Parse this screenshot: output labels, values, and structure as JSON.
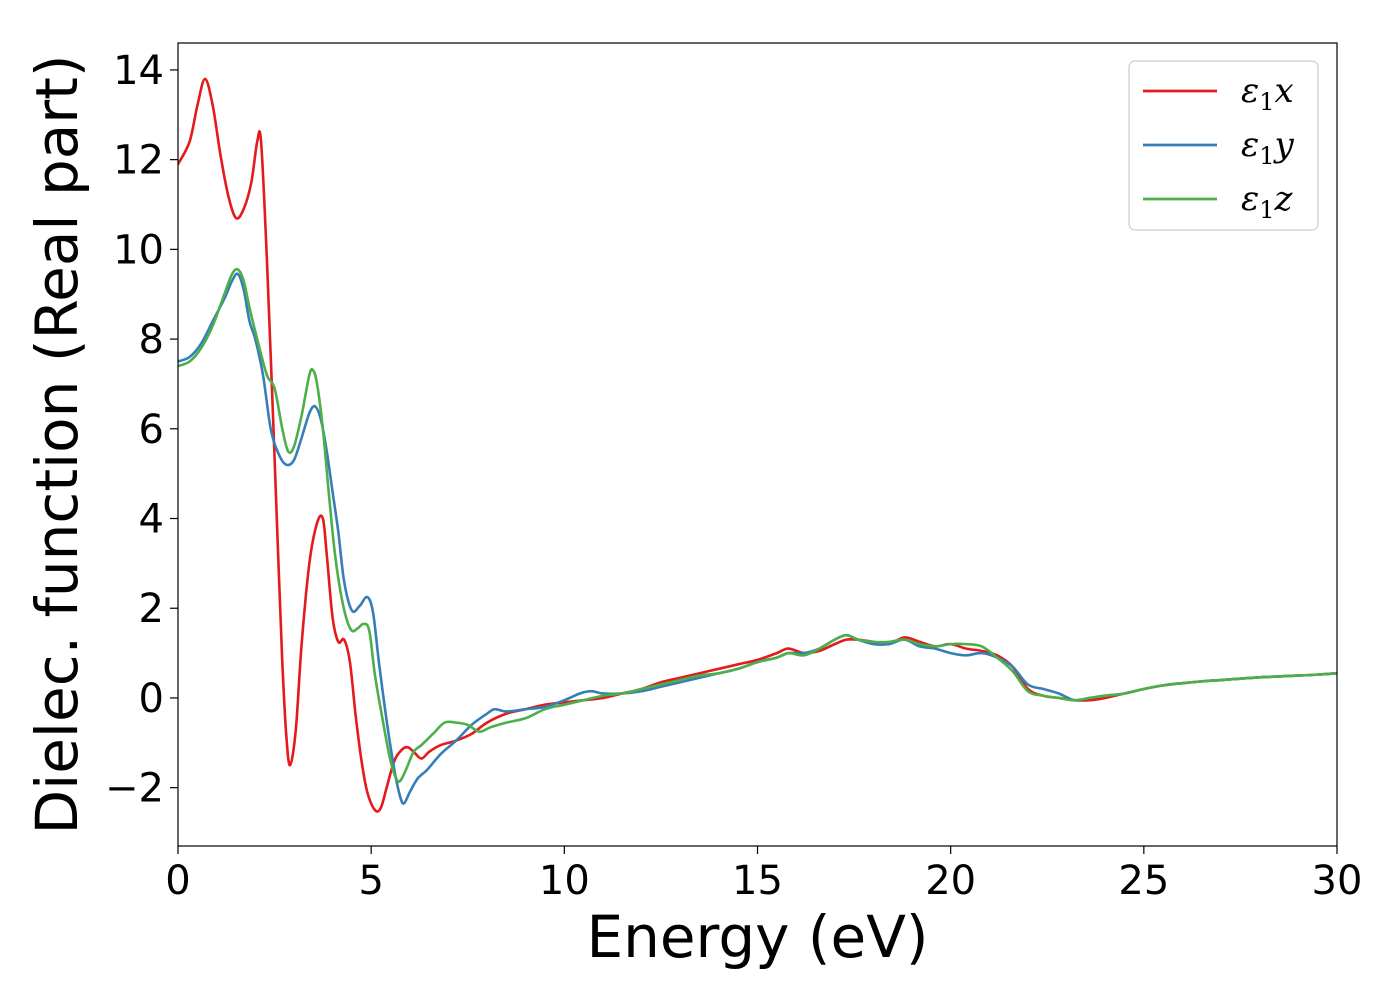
{
  "chart_data": {
    "type": "line",
    "xlabel": "Energy (eV)",
    "ylabel": "Dielec. function (Real part)",
    "xlim": [
      0,
      30
    ],
    "ylim": [
      -3.3,
      14.6
    ],
    "xticks": [
      0,
      5,
      10,
      15,
      20,
      25,
      30
    ],
    "yticks": [
      -2,
      0,
      2,
      4,
      6,
      8,
      10,
      12,
      14
    ],
    "xtick_labels": [
      "0",
      "5",
      "10",
      "15",
      "20",
      "25",
      "30"
    ],
    "ytick_labels": [
      "−2",
      "0",
      "2",
      "4",
      "6",
      "8",
      "10",
      "12",
      "14"
    ],
    "grid": false,
    "legend_position": "top-right",
    "series": [
      {
        "name": "x",
        "label_symbol": "ε",
        "label_sub": "1",
        "label_var": "x",
        "color": "#e41a1c",
        "x": [
          0,
          0.3,
          0.5,
          0.7,
          0.9,
          1.1,
          1.3,
          1.5,
          1.7,
          1.9,
          2.05,
          2.15,
          2.3,
          2.45,
          2.6,
          2.7,
          2.8,
          2.9,
          3.05,
          3.2,
          3.4,
          3.6,
          3.75,
          3.85,
          4.0,
          4.15,
          4.3,
          4.45,
          4.6,
          4.75,
          4.9,
          5.1,
          5.25,
          5.4,
          5.6,
          5.8,
          5.95,
          6.1,
          6.3,
          6.5,
          6.8,
          7.2,
          7.6,
          8.0,
          8.5,
          9.0,
          9.5,
          10.0,
          10.5,
          11.0,
          11.5,
          12.0,
          12.5,
          13.0,
          13.5,
          14.0,
          14.5,
          15.0,
          15.5,
          15.8,
          16.2,
          16.6,
          17.0,
          17.3,
          17.6,
          18.0,
          18.4,
          18.8,
          19.2,
          19.6,
          20.0,
          20.4,
          20.8,
          21.2,
          21.6,
          22.0,
          22.4,
          22.8,
          23.2,
          23.6,
          24.0,
          24.5,
          25.0,
          25.5,
          26.0,
          26.5,
          27.0,
          27.5,
          28.0,
          28.5,
          29.0,
          29.5,
          30.0
        ],
        "y": [
          11.9,
          12.4,
          13.2,
          13.8,
          13.2,
          12.1,
          11.2,
          10.7,
          10.9,
          11.5,
          12.4,
          12.4,
          9.8,
          6.5,
          3.0,
          0.8,
          -0.8,
          -1.5,
          -0.7,
          1.2,
          3.0,
          3.9,
          4.0,
          3.2,
          1.8,
          1.25,
          1.3,
          0.8,
          -0.4,
          -1.4,
          -2.1,
          -2.5,
          -2.45,
          -2.0,
          -1.4,
          -1.15,
          -1.1,
          -1.2,
          -1.35,
          -1.2,
          -1.05,
          -0.95,
          -0.8,
          -0.55,
          -0.35,
          -0.25,
          -0.15,
          -0.1,
          -0.05,
          0.0,
          0.1,
          0.2,
          0.35,
          0.45,
          0.55,
          0.65,
          0.75,
          0.85,
          1.0,
          1.1,
          1.0,
          1.05,
          1.2,
          1.3,
          1.3,
          1.25,
          1.2,
          1.35,
          1.25,
          1.15,
          1.2,
          1.1,
          1.05,
          0.95,
          0.7,
          0.2,
          0.05,
          0.0,
          -0.05,
          -0.05,
          0.0,
          0.1,
          0.2,
          0.28,
          0.33,
          0.37,
          0.4,
          0.43,
          0.46,
          0.48,
          0.5,
          0.52,
          0.55
        ]
      },
      {
        "name": "y",
        "label_symbol": "ε",
        "label_sub": "1",
        "label_var": "y",
        "color": "#377eb8",
        "x": [
          0,
          0.3,
          0.6,
          0.9,
          1.2,
          1.4,
          1.55,
          1.7,
          1.85,
          2.0,
          2.2,
          2.4,
          2.6,
          2.8,
          3.0,
          3.2,
          3.4,
          3.55,
          3.7,
          3.85,
          4.0,
          4.15,
          4.3,
          4.5,
          4.7,
          4.9,
          5.05,
          5.2,
          5.4,
          5.6,
          5.75,
          5.85,
          6.0,
          6.2,
          6.45,
          6.8,
          7.2,
          7.6,
          8.0,
          8.2,
          8.5,
          9.0,
          9.5,
          10.0,
          10.4,
          10.7,
          11.0,
          11.5,
          12.0,
          12.5,
          13.0,
          13.5,
          14.0,
          14.5,
          15.0,
          15.5,
          15.8,
          16.2,
          16.6,
          17.0,
          17.3,
          17.6,
          18.0,
          18.4,
          18.8,
          19.2,
          19.6,
          20.0,
          20.4,
          20.8,
          21.2,
          21.6,
          22.0,
          22.4,
          22.8,
          23.2,
          23.6,
          24.0,
          24.5,
          25.0,
          25.5,
          26.0,
          26.5,
          27.0,
          27.5,
          28.0,
          28.5,
          29.0,
          29.5,
          30.0
        ],
        "y": [
          7.5,
          7.6,
          7.9,
          8.4,
          8.9,
          9.3,
          9.45,
          9.1,
          8.4,
          8.0,
          7.2,
          6.0,
          5.45,
          5.2,
          5.3,
          5.8,
          6.35,
          6.5,
          6.2,
          5.5,
          4.6,
          3.7,
          2.6,
          1.95,
          2.05,
          2.25,
          1.9,
          0.8,
          -0.5,
          -1.6,
          -2.2,
          -2.35,
          -2.1,
          -1.8,
          -1.6,
          -1.25,
          -0.95,
          -0.6,
          -0.35,
          -0.25,
          -0.3,
          -0.25,
          -0.2,
          -0.05,
          0.1,
          0.15,
          0.1,
          0.1,
          0.15,
          0.25,
          0.35,
          0.45,
          0.55,
          0.65,
          0.8,
          0.9,
          1.0,
          1.0,
          1.1,
          1.3,
          1.4,
          1.3,
          1.2,
          1.2,
          1.3,
          1.15,
          1.1,
          1.0,
          0.95,
          1.0,
          0.9,
          0.7,
          0.3,
          0.2,
          0.1,
          -0.05,
          0.0,
          0.05,
          0.1,
          0.2,
          0.28,
          0.33,
          0.37,
          0.4,
          0.43,
          0.46,
          0.48,
          0.5,
          0.52,
          0.55
        ]
      },
      {
        "name": "z",
        "label_symbol": "ε",
        "label_sub": "1",
        "label_var": "z",
        "color": "#4daf4a",
        "x": [
          0,
          0.3,
          0.6,
          0.9,
          1.2,
          1.4,
          1.55,
          1.7,
          1.85,
          2.05,
          2.3,
          2.5,
          2.7,
          2.85,
          3.0,
          3.2,
          3.4,
          3.5,
          3.6,
          3.75,
          3.9,
          4.05,
          4.2,
          4.35,
          4.5,
          4.65,
          4.8,
          4.95,
          5.1,
          5.3,
          5.5,
          5.65,
          5.75,
          5.9,
          6.1,
          6.3,
          6.6,
          6.9,
          7.2,
          7.5,
          7.8,
          8.1,
          8.5,
          9.0,
          9.5,
          10.0,
          10.5,
          11.0,
          11.5,
          12.0,
          12.5,
          13.0,
          13.5,
          14.0,
          14.5,
          15.0,
          15.5,
          15.8,
          16.2,
          16.6,
          17.0,
          17.3,
          17.6,
          18.0,
          18.4,
          18.8,
          19.2,
          19.6,
          20.0,
          20.4,
          20.8,
          21.2,
          21.6,
          22.0,
          22.4,
          22.8,
          23.2,
          23.6,
          24.0,
          24.5,
          25.0,
          25.5,
          26.0,
          26.5,
          27.0,
          27.5,
          28.0,
          28.5,
          29.0,
          29.5,
          30.0
        ],
        "y": [
          7.4,
          7.5,
          7.8,
          8.3,
          9.0,
          9.45,
          9.55,
          9.3,
          8.7,
          8.0,
          7.2,
          6.9,
          6.0,
          5.5,
          5.6,
          6.3,
          7.2,
          7.3,
          7.0,
          6.0,
          4.6,
          3.3,
          2.4,
          1.8,
          1.5,
          1.55,
          1.65,
          1.5,
          0.5,
          -0.5,
          -1.4,
          -1.8,
          -1.85,
          -1.6,
          -1.2,
          -1.05,
          -0.8,
          -0.55,
          -0.55,
          -0.6,
          -0.75,
          -0.65,
          -0.55,
          -0.45,
          -0.25,
          -0.15,
          -0.05,
          0.05,
          0.1,
          0.2,
          0.3,
          0.4,
          0.5,
          0.55,
          0.65,
          0.8,
          0.9,
          1.0,
          0.95,
          1.1,
          1.3,
          1.4,
          1.3,
          1.25,
          1.25,
          1.3,
          1.2,
          1.15,
          1.2,
          1.2,
          1.15,
          0.9,
          0.6,
          0.15,
          0.05,
          0.0,
          -0.05,
          0.0,
          0.05,
          0.1,
          0.2,
          0.28,
          0.33,
          0.37,
          0.4,
          0.43,
          0.46,
          0.48,
          0.5,
          0.52,
          0.55
        ]
      }
    ]
  }
}
